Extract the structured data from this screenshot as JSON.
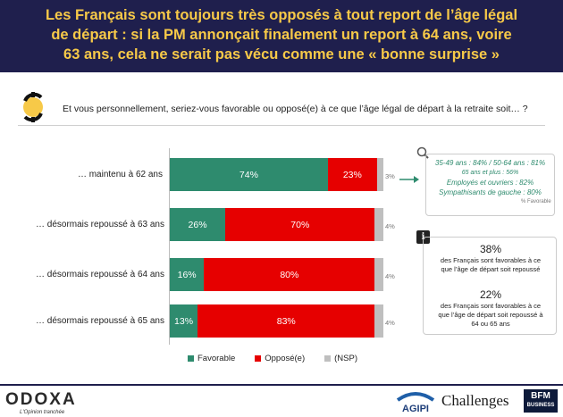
{
  "header": {
    "title_line1": "Les Français sont toujours très opposés à tout report de l’âge légal",
    "title_line2": "de départ : si la PM annonçait finalement un report à 64 ans, voire",
    "title_line3": "63 ans, cela ne serait pas vécu comme une « bonne surprise »"
  },
  "question": "Et vous personnellement, seriez-vous favorable ou opposé(e) à ce que l’âge légal de départ à la retraite soit… ?",
  "colors": {
    "favorable": "#2e8b6e",
    "oppose": "#e60000",
    "nsp": "#bfbfbf",
    "header_bg": "#1f1f4d",
    "header_text": "#f7c948",
    "detail_text": "#2e8b6e"
  },
  "chart_data": {
    "type": "bar",
    "orientation": "horizontal",
    "stacked": true,
    "categories": [
      "… maintenu à 62 ans",
      "… désormais repoussé à 63 ans",
      "… désormais repoussé à 64 ans",
      "… désormais repoussé à 65 ans"
    ],
    "series": [
      {
        "name": "Favorable",
        "values": [
          74,
          26,
          16,
          13
        ],
        "labels": [
          "74%",
          "26%",
          "16%",
          "13%"
        ]
      },
      {
        "name": "Opposé(e)",
        "values": [
          23,
          70,
          80,
          83
        ],
        "labels": [
          "23%",
          "70%",
          "80%",
          "83%"
        ]
      },
      {
        "name": "(NSP)",
        "values": [
          3,
          4,
          4,
          4
        ],
        "labels": [
          "3%",
          "4%",
          "4%",
          "4%"
        ]
      }
    ],
    "xlim": [
      0,
      100
    ],
    "legend_position": "bottom"
  },
  "detail": {
    "lines": [
      "35-49 ans : 84% / 50-64 ans : 81%",
      "65 ans et plus : 56%",
      "Employés et ouvriers : 82%",
      "Sympathisants de gauche : 80%"
    ],
    "note": "% Favorable"
  },
  "info": {
    "stat1_value": "38%",
    "stat1_text": "des Français sont favorables à ce que l’âge de départ soit repoussé",
    "stat2_value": "22%",
    "stat2_text": "des Français sont favorables à ce que l’âge de départ soit repoussé à 64 ou 65 ans"
  },
  "footer": {
    "brand": "ODOXA",
    "tagline": "L'Opinion tranchée",
    "partner1": "AGIPI",
    "partner2": "Challenges",
    "partner3_line1": "BFM",
    "partner3_line2": "BUSINESS"
  }
}
